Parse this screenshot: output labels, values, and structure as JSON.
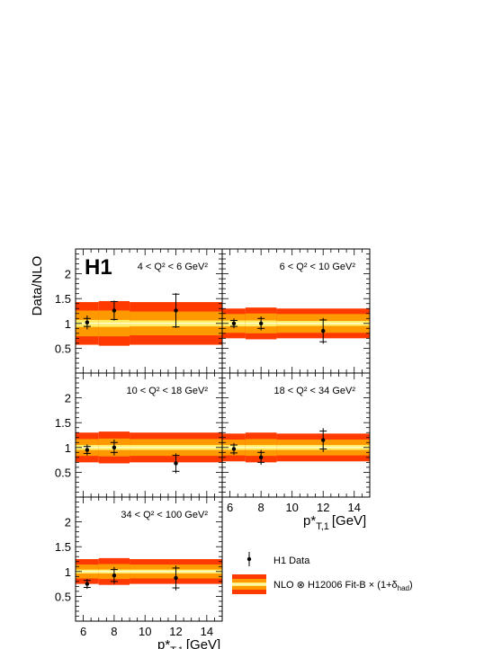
{
  "figure": {
    "logo": "H1",
    "ylabel": "Data/NLO",
    "xlabel_main": "p*",
    "xlabel_sub": "T,1",
    "xlabel_unit": "[GeV]"
  },
  "legend": {
    "data_label": "H1 Data",
    "band_label_main": "NLO ⊗ H12006 Fit-B × (1+δ",
    "band_label_sub": "had",
    "band_label_close": ")"
  },
  "colors": {
    "outer_band": "#ff3a00",
    "middle_band": "#ff9900",
    "inner_band": "#ffee66",
    "nlo_line": "#ffffff",
    "data": "#000000"
  },
  "chart_data": [
    {
      "type": "scatter",
      "label": "4 < Q² < 6 GeV²",
      "xlim": [
        5.5,
        15
      ],
      "ylim": [
        0,
        2.5
      ],
      "xticks": [
        6,
        8,
        10,
        12,
        14
      ],
      "yticks": [
        0.5,
        1,
        1.5,
        2
      ],
      "x": [
        6.25,
        8.0,
        12.0
      ],
      "y": [
        1.02,
        1.26,
        1.26
      ],
      "stat_err": [
        0.08,
        0.18,
        0.33
      ],
      "tot_err": [
        0.14,
        0.2,
        0.35
      ],
      "bins": [
        [
          5.5,
          7
        ],
        [
          7,
          9
        ],
        [
          9,
          15
        ]
      ],
      "band_outer": [
        0.43,
        0.45,
        0.43
      ],
      "band_middle": [
        0.26,
        0.26,
        0.24
      ],
      "band_inner": [
        0.07,
        0.07,
        0.06
      ]
    },
    {
      "type": "scatter",
      "label": "6 < Q² < 10 GeV²",
      "xlim": [
        5.5,
        15
      ],
      "ylim": [
        0,
        2.5
      ],
      "xticks": [
        6,
        8,
        10,
        12,
        14
      ],
      "yticks": [
        0.5,
        1,
        1.5,
        2
      ],
      "x": [
        6.25,
        8.0,
        12.0
      ],
      "y": [
        1.0,
        1.0,
        0.85
      ],
      "stat_err": [
        0.06,
        0.1,
        0.22
      ],
      "tot_err": [
        0.1,
        0.14,
        0.26
      ],
      "bins": [
        [
          5.5,
          7
        ],
        [
          7,
          9
        ],
        [
          9,
          15
        ]
      ],
      "band_outer": [
        0.3,
        0.32,
        0.3
      ],
      "band_middle": [
        0.19,
        0.2,
        0.19
      ],
      "band_inner": [
        0.06,
        0.06,
        0.05
      ]
    },
    {
      "type": "scatter",
      "label": "10 < Q² < 18 GeV²",
      "xlim": [
        5.5,
        15
      ],
      "ylim": [
        0,
        2.5
      ],
      "xticks": [
        6,
        8,
        10,
        12,
        14
      ],
      "yticks": [
        0.5,
        1,
        1.5,
        2
      ],
      "x": [
        6.25,
        8.0,
        12.0
      ],
      "y": [
        0.95,
        1.0,
        0.68
      ],
      "stat_err": [
        0.07,
        0.1,
        0.16
      ],
      "tot_err": [
        0.11,
        0.16,
        0.2
      ],
      "bins": [
        [
          5.5,
          7
        ],
        [
          7,
          9
        ],
        [
          9,
          15
        ]
      ],
      "band_outer": [
        0.3,
        0.32,
        0.3
      ],
      "band_middle": [
        0.17,
        0.18,
        0.17
      ],
      "band_inner": [
        0.05,
        0.05,
        0.05
      ]
    },
    {
      "type": "scatter",
      "label": "18 < Q² < 34 GeV²",
      "xlim": [
        5.5,
        15
      ],
      "ylim": [
        0,
        2.5
      ],
      "xticks": [
        6,
        8,
        10,
        12,
        14
      ],
      "yticks": [
        0.5,
        1,
        1.5,
        2
      ],
      "x": [
        6.25,
        8.0,
        12.0
      ],
      "y": [
        0.97,
        0.8,
        1.15
      ],
      "stat_err": [
        0.08,
        0.1,
        0.18
      ],
      "tot_err": [
        0.12,
        0.15,
        0.24
      ],
      "bins": [
        [
          5.5,
          7
        ],
        [
          7,
          9
        ],
        [
          9,
          15
        ]
      ],
      "band_outer": [
        0.28,
        0.3,
        0.28
      ],
      "band_middle": [
        0.16,
        0.17,
        0.16
      ],
      "band_inner": [
        0.05,
        0.05,
        0.05
      ]
    },
    {
      "type": "scatter",
      "label": "34 < Q² < 100 GeV²",
      "xlim": [
        5.5,
        15
      ],
      "ylim": [
        0,
        2.5
      ],
      "xticks": [
        6,
        8,
        10,
        12,
        14
      ],
      "yticks": [
        0.5,
        1,
        1.5,
        2
      ],
      "x": [
        6.25,
        8.0,
        12.0
      ],
      "y": [
        0.75,
        0.92,
        0.87
      ],
      "stat_err": [
        0.07,
        0.12,
        0.2
      ],
      "tot_err": [
        0.1,
        0.17,
        0.25
      ],
      "bins": [
        [
          5.5,
          7
        ],
        [
          7,
          9
        ],
        [
          9,
          15
        ]
      ],
      "band_outer": [
        0.25,
        0.27,
        0.25
      ],
      "band_middle": [
        0.14,
        0.15,
        0.14
      ],
      "band_inner": [
        0.04,
        0.04,
        0.04
      ]
    }
  ]
}
